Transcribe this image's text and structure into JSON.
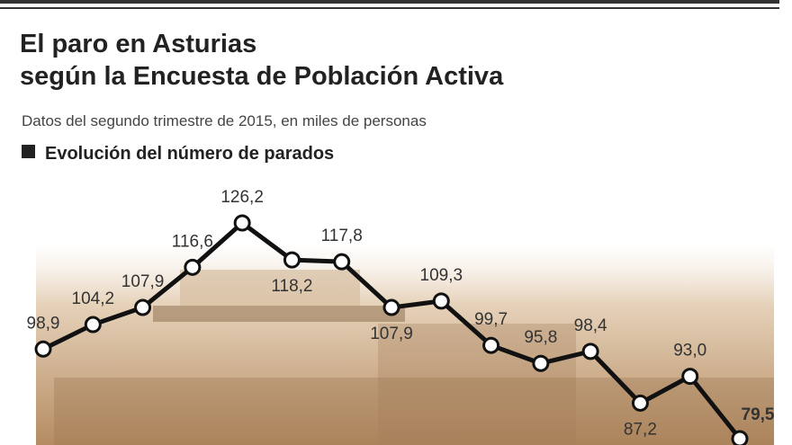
{
  "chart_data": {
    "type": "line",
    "title": "El paro en Asturias según la Encuesta de Población Activa",
    "subtitle": "Datos del segundo trimestre de 2015, en miles de personas",
    "section_label": "Evolución del número de parados",
    "categories": [
      null,
      null,
      null,
      null,
      null,
      null,
      null,
      null,
      null,
      null,
      null,
      null,
      null,
      null,
      null
    ],
    "values": [
      98.9,
      104.2,
      107.9,
      116.6,
      126.2,
      118.2,
      117.8,
      107.9,
      109.3,
      99.7,
      95.8,
      98.4,
      87.2,
      93.0,
      79.5
    ],
    "value_labels": [
      "98,9",
      "104,2",
      "107,9",
      "116,6",
      "126,2",
      "118,2",
      "117,8",
      "107,9",
      "109,3",
      "99,7",
      "95,8",
      "98,4",
      "87,2",
      "93,0",
      "79,5"
    ],
    "color": "#111111"
  }
}
